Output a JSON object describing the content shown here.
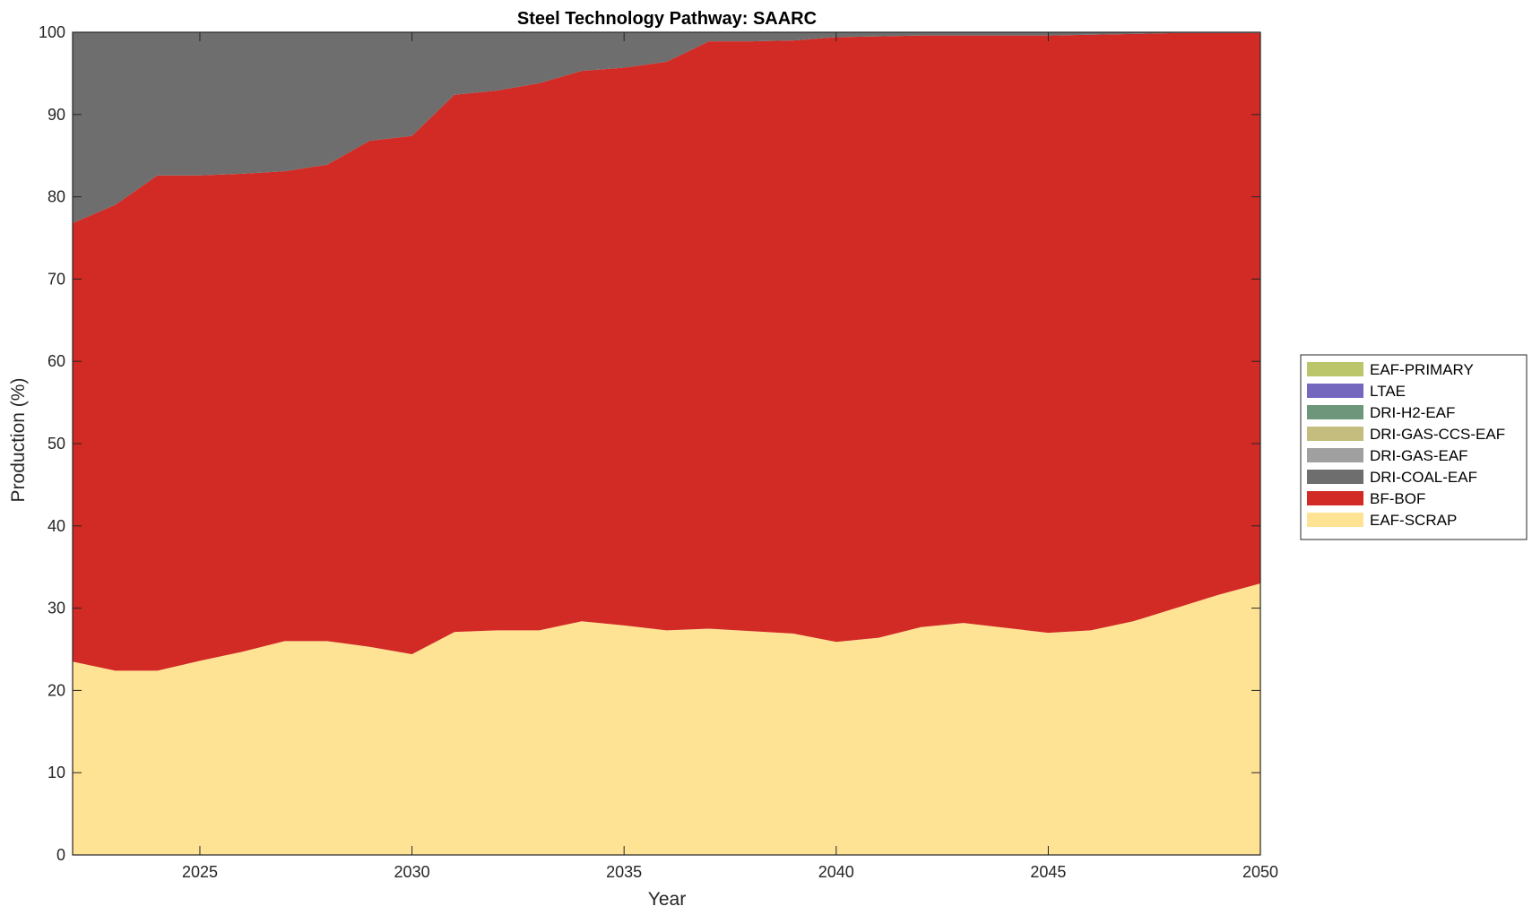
{
  "chart_data": {
    "type": "area",
    "stacked": true,
    "title": "Steel Technology Pathway: SAARC",
    "xlabel": "Year",
    "ylabel": "Production (%)",
    "xlim": [
      2022,
      2050
    ],
    "ylim": [
      0,
      100
    ],
    "xticks": [
      2025,
      2030,
      2035,
      2040,
      2045,
      2050
    ],
    "yticks": [
      0,
      10,
      20,
      30,
      40,
      50,
      60,
      70,
      80,
      90,
      100
    ],
    "grid": false,
    "legend_placement": "outside right",
    "x": [
      2022,
      2023,
      2024,
      2025,
      2026,
      2027,
      2028,
      2029,
      2030,
      2031,
      2032,
      2033,
      2034,
      2035,
      2036,
      2037,
      2038,
      2039,
      2040,
      2041,
      2042,
      2043,
      2044,
      2045,
      2046,
      2047,
      2048,
      2049,
      2050
    ],
    "series": [
      {
        "name": "EAF-SCRAP",
        "color": "#FFE394",
        "values": [
          23.5,
          22.4,
          22.4,
          23.6,
          24.7,
          26.0,
          26.0,
          25.3,
          24.4,
          27.1,
          27.3,
          27.3,
          28.4,
          27.9,
          27.3,
          27.5,
          27.2,
          26.9,
          25.9,
          26.4,
          27.7,
          28.2,
          27.6,
          27.0,
          27.3,
          28.4,
          30.0,
          31.6,
          33.0
        ]
      },
      {
        "name": "BF-BOF",
        "color": "#D22A24",
        "values": [
          53.3,
          56.6,
          60.2,
          59.0,
          58.1,
          57.1,
          57.9,
          61.5,
          63.0,
          65.3,
          65.6,
          66.5,
          66.9,
          67.8,
          69.1,
          71.4,
          71.7,
          72.1,
          73.5,
          73.1,
          71.9,
          71.4,
          72.0,
          72.6,
          72.4,
          71.4,
          69.9,
          68.3,
          66.9
        ]
      },
      {
        "name": "DRI-COAL-EAF",
        "color": "#6E6E6E",
        "values": [
          23.2,
          21.0,
          17.4,
          17.4,
          17.2,
          16.9,
          16.1,
          13.2,
          12.6,
          7.6,
          7.1,
          6.2,
          4.7,
          4.3,
          3.6,
          1.1,
          1.1,
          1.0,
          0.6,
          0.5,
          0.4,
          0.4,
          0.4,
          0.4,
          0.3,
          0.2,
          0.1,
          0.1,
          0.1
        ]
      },
      {
        "name": "DRI-GAS-EAF",
        "color": "#A0A0A0",
        "values": [
          0,
          0,
          0,
          0,
          0,
          0,
          0,
          0,
          0,
          0,
          0,
          0,
          0,
          0,
          0,
          0,
          0,
          0,
          0,
          0,
          0,
          0,
          0,
          0,
          0,
          0,
          0,
          0,
          0
        ]
      },
      {
        "name": "DRI-GAS-CCS-EAF",
        "color": "#C4BD7E",
        "values": [
          0,
          0,
          0,
          0,
          0,
          0,
          0,
          0,
          0,
          0,
          0,
          0,
          0,
          0,
          0,
          0,
          0,
          0,
          0,
          0,
          0,
          0,
          0,
          0,
          0,
          0,
          0,
          0,
          0
        ]
      },
      {
        "name": "DRI-H2-EAF",
        "color": "#6D967A",
        "values": [
          0,
          0,
          0,
          0,
          0,
          0,
          0,
          0,
          0,
          0,
          0,
          0,
          0,
          0,
          0,
          0,
          0,
          0,
          0,
          0,
          0,
          0,
          0,
          0,
          0,
          0,
          0,
          0,
          0
        ]
      },
      {
        "name": "LTAE",
        "color": "#7468BE",
        "values": [
          0,
          0,
          0,
          0,
          0,
          0,
          0,
          0,
          0,
          0,
          0,
          0,
          0,
          0,
          0,
          0,
          0,
          0,
          0,
          0,
          0,
          0,
          0,
          0,
          0,
          0,
          0,
          0,
          0
        ]
      },
      {
        "name": "EAF-PRIMARY",
        "color": "#BBC66A",
        "values": [
          0,
          0,
          0,
          0,
          0,
          0,
          0,
          0,
          0,
          0,
          0,
          0,
          0,
          0,
          0,
          0,
          0,
          0,
          0,
          0,
          0,
          0,
          0,
          0,
          0,
          0,
          0,
          0,
          0
        ]
      }
    ],
    "legend_order": [
      "EAF-PRIMARY",
      "LTAE",
      "DRI-H2-EAF",
      "DRI-GAS-CCS-EAF",
      "DRI-GAS-EAF",
      "DRI-COAL-EAF",
      "BF-BOF",
      "EAF-SCRAP"
    ]
  }
}
